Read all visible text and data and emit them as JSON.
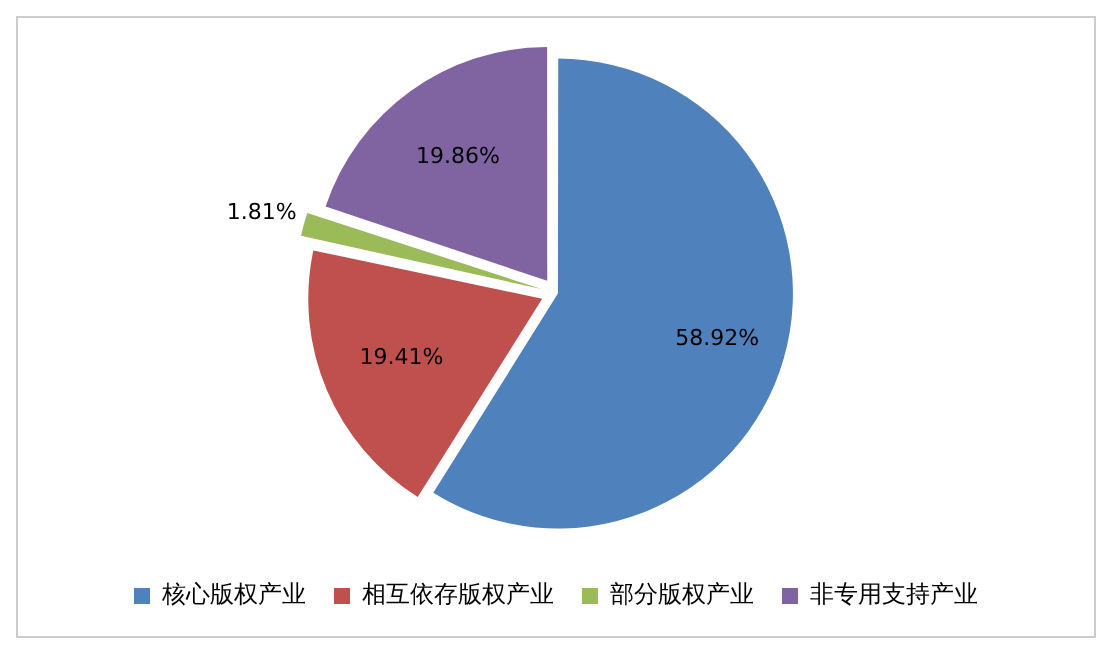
{
  "chart_data": {
    "type": "pie",
    "categories": [
      "核心版权产业",
      "相互依存版权产业",
      "部分版权产业",
      "非专用支持产业"
    ],
    "values": [
      58.92,
      19.41,
      1.81,
      19.86
    ],
    "value_labels": [
      "58.92%",
      "19.41%",
      "1.81%",
      "19.86%"
    ],
    "colors": [
      "#4f81bd",
      "#c0504d",
      "#9bbb59",
      "#8064a2"
    ],
    "legend": "bottom"
  }
}
